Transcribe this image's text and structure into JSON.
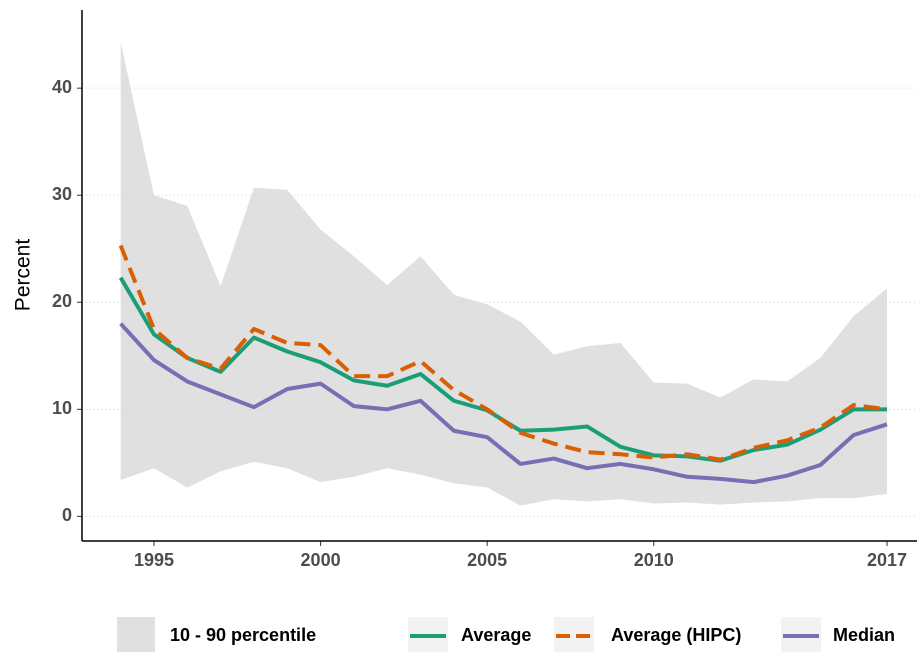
{
  "chart_data": {
    "type": "line",
    "y_label": "Percent",
    "x": [
      1994,
      1995,
      1996,
      1997,
      1998,
      1999,
      2000,
      2001,
      2002,
      2003,
      2004,
      2005,
      2006,
      2007,
      2008,
      2009,
      2010,
      2011,
      2012,
      2013,
      2014,
      2015,
      2016,
      2017
    ],
    "ribbon": {
      "name": "10 - 90 percentile",
      "color": "#e0e0e0",
      "lower": [
        3.4,
        4.5,
        2.7,
        4.2,
        5.1,
        4.5,
        3.2,
        3.7,
        4.5,
        3.9,
        3.1,
        2.7,
        1.0,
        1.6,
        1.4,
        1.6,
        1.2,
        1.3,
        1.1,
        1.3,
        1.4,
        1.7,
        1.7,
        2.1
      ],
      "upper": [
        44.3,
        30.0,
        29.0,
        21.5,
        30.7,
        30.5,
        26.8,
        24.3,
        21.6,
        24.3,
        20.7,
        19.8,
        18.2,
        15.1,
        15.9,
        16.2,
        12.5,
        12.4,
        11.1,
        12.8,
        12.6,
        14.8,
        18.7,
        21.3
      ]
    },
    "series": [
      {
        "name": "Average",
        "color": "#1b9e77",
        "dashed": false,
        "values": [
          22.3,
          17.0,
          14.8,
          13.5,
          16.7,
          15.4,
          14.4,
          12.7,
          12.2,
          13.3,
          10.8,
          9.9,
          8.0,
          8.1,
          8.4,
          6.5,
          5.7,
          5.6,
          5.2,
          6.2,
          6.7,
          8.1,
          10.0,
          10.0
        ]
      },
      {
        "name": "Average (HIPC)",
        "color": "#d95f02",
        "dashed": true,
        "values": [
          25.3,
          17.5,
          14.8,
          13.8,
          17.5,
          16.2,
          16.0,
          13.1,
          13.1,
          14.5,
          11.8,
          10.0,
          7.8,
          6.8,
          6.0,
          5.8,
          5.5,
          5.8,
          5.3,
          6.4,
          7.1,
          8.3,
          10.4,
          10.0
        ]
      },
      {
        "name": "Median",
        "color": "#7570b3",
        "dashed": false,
        "values": [
          18.0,
          14.6,
          12.6,
          11.4,
          10.2,
          11.9,
          12.4,
          10.3,
          10.0,
          10.8,
          8.0,
          7.4,
          4.9,
          5.4,
          4.5,
          4.9,
          4.4,
          3.7,
          3.5,
          3.2,
          3.8,
          4.8,
          7.6,
          8.6
        ]
      }
    ],
    "xlim": [
      1992.84,
      2017.9
    ],
    "xticks": [
      1995,
      2000,
      2005,
      2010,
      2017
    ],
    "ylim": [
      -2.3,
      47.3
    ],
    "yticks": [
      0,
      10,
      20,
      30,
      40
    ],
    "grid": true,
    "legend": "bottom"
  }
}
